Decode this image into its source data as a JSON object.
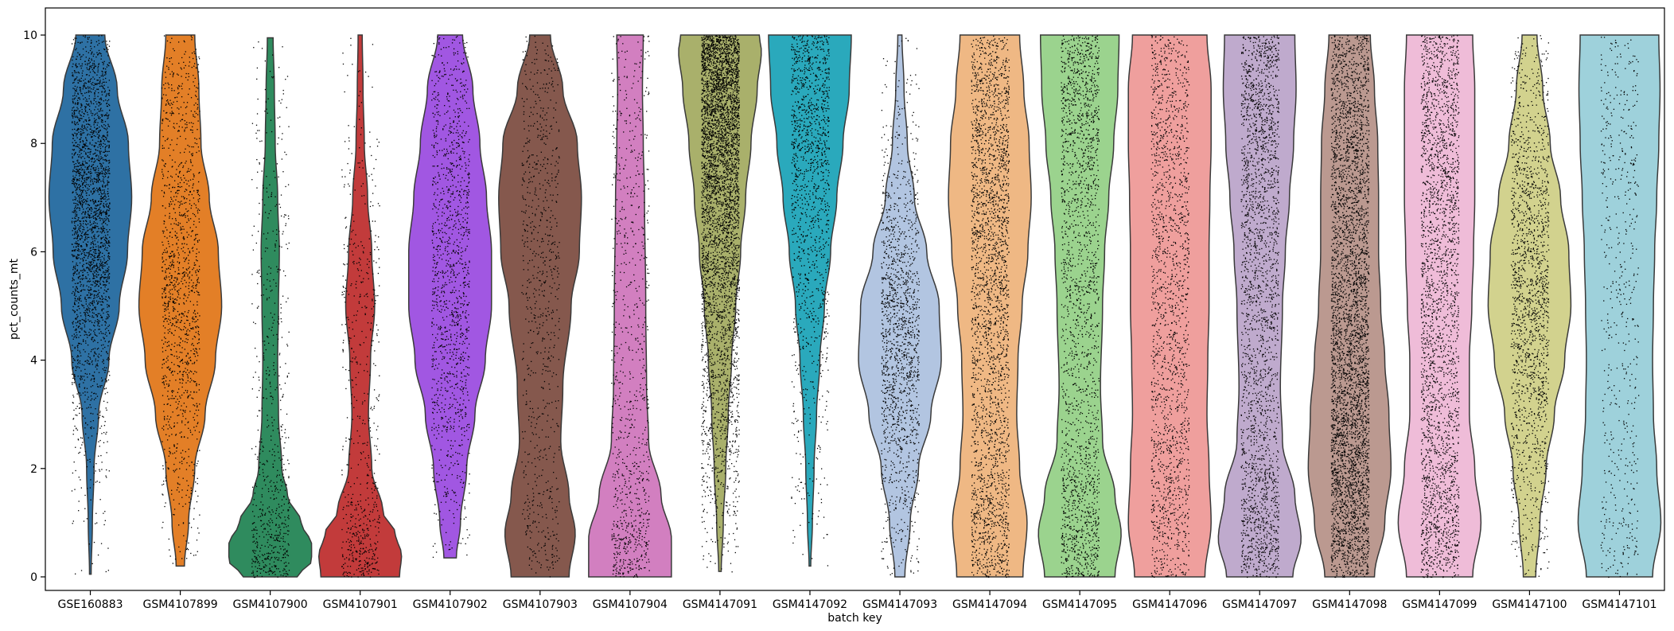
{
  "chart_data": {
    "type": "violin",
    "xlabel": "batch key",
    "ylabel": "pct_counts_mt",
    "ylim": [
      -0.25,
      10.5
    ],
    "yticks": [
      0,
      2,
      4,
      6,
      8,
      10
    ],
    "grid": false,
    "legend": "none",
    "jitter_points": true,
    "categories": [
      "GSE160883",
      "GSM4107899",
      "GSM4107900",
      "GSM4107901",
      "GSM4107902",
      "GSM4107903",
      "GSM4107904",
      "GSM4147091",
      "GSM4147092",
      "GSM4147093",
      "GSM4147094",
      "GSM4147095",
      "GSM4147096",
      "GSM4147097",
      "GSM4147098",
      "GSM4147099",
      "GSM4147100",
      "GSM4147101"
    ],
    "colors": [
      "#2e71a4",
      "#e37f27",
      "#2f8b5e",
      "#c23b3b",
      "#a157e2",
      "#85584d",
      "#d27fc0",
      "#a9b06b",
      "#2aa9bc",
      "#b2c5e1",
      "#efb884",
      "#9bd38e",
      "#ef9f9d",
      "#bfaacd",
      "#bb9990",
      "#efbcd8",
      "#d2d28e",
      "#9ed1db"
    ],
    "violins": [
      {
        "min": 0.05,
        "max": 10.0,
        "count": 2600,
        "profile": [
          [
            0.05,
            0.02
          ],
          [
            1,
            0.05
          ],
          [
            2,
            0.09
          ],
          [
            3,
            0.2
          ],
          [
            4,
            0.45
          ],
          [
            5,
            0.7
          ],
          [
            6,
            0.9
          ],
          [
            7,
            1.0
          ],
          [
            8,
            0.92
          ],
          [
            9,
            0.65
          ],
          [
            10,
            0.35
          ]
        ]
      },
      {
        "min": 0.2,
        "max": 10.0,
        "count": 1300,
        "profile": [
          [
            0.2,
            0.1
          ],
          [
            1,
            0.2
          ],
          [
            2,
            0.35
          ],
          [
            3,
            0.6
          ],
          [
            4,
            0.85
          ],
          [
            5,
            1.0
          ],
          [
            6,
            0.92
          ],
          [
            7,
            0.7
          ],
          [
            8,
            0.5
          ],
          [
            9,
            0.45
          ],
          [
            10,
            0.35
          ]
        ]
      },
      {
        "min": 0.0,
        "max": 9.95,
        "count": 700,
        "profile": [
          [
            0,
            0.65
          ],
          [
            0.3,
            1.0
          ],
          [
            0.6,
            1.0
          ],
          [
            1,
            0.75
          ],
          [
            1.5,
            0.42
          ],
          [
            2,
            0.28
          ],
          [
            3,
            0.2
          ],
          [
            4,
            0.18
          ],
          [
            5,
            0.2
          ],
          [
            6,
            0.22
          ],
          [
            7,
            0.18
          ],
          [
            8,
            0.12
          ],
          [
            9,
            0.1
          ],
          [
            9.95,
            0.07
          ]
        ]
      },
      {
        "min": 0.0,
        "max": 10.0,
        "count": 650,
        "profile": [
          [
            0,
            0.95
          ],
          [
            0.4,
            1.0
          ],
          [
            0.8,
            0.85
          ],
          [
            1.2,
            0.55
          ],
          [
            2,
            0.28
          ],
          [
            3,
            0.2
          ],
          [
            4,
            0.25
          ],
          [
            5,
            0.35
          ],
          [
            6,
            0.28
          ],
          [
            7,
            0.18
          ],
          [
            8,
            0.1
          ],
          [
            9,
            0.07
          ],
          [
            10,
            0.05
          ]
        ]
      },
      {
        "min": 0.35,
        "max": 10.0,
        "count": 1300,
        "profile": [
          [
            0.35,
            0.15
          ],
          [
            1,
            0.25
          ],
          [
            2,
            0.4
          ],
          [
            3,
            0.6
          ],
          [
            4,
            0.85
          ],
          [
            5,
            1.0
          ],
          [
            6,
            1.0
          ],
          [
            7,
            0.88
          ],
          [
            8,
            0.72
          ],
          [
            9,
            0.55
          ],
          [
            10,
            0.3
          ]
        ]
      },
      {
        "min": 0.0,
        "max": 10.0,
        "count": 800,
        "profile": [
          [
            0,
            0.7
          ],
          [
            0.8,
            0.85
          ],
          [
            1.5,
            0.7
          ],
          [
            2.5,
            0.5
          ],
          [
            3.5,
            0.55
          ],
          [
            5,
            0.75
          ],
          [
            6,
            0.95
          ],
          [
            7,
            1.0
          ],
          [
            8,
            0.9
          ],
          [
            9,
            0.55
          ],
          [
            10,
            0.25
          ]
        ]
      },
      {
        "min": 0.0,
        "max": 10.0,
        "count": 900,
        "profile": [
          [
            0,
            1.0
          ],
          [
            0.7,
            1.0
          ],
          [
            1.5,
            0.75
          ],
          [
            2.5,
            0.45
          ],
          [
            3.5,
            0.4
          ],
          [
            5,
            0.38
          ],
          [
            7,
            0.35
          ],
          [
            8,
            0.32
          ],
          [
            9,
            0.3
          ],
          [
            10,
            0.32
          ]
        ]
      },
      {
        "min": 0.1,
        "max": 10.0,
        "count": 4500,
        "profile": [
          [
            0.1,
            0.03
          ],
          [
            1,
            0.08
          ],
          [
            2,
            0.14
          ],
          [
            3,
            0.2
          ],
          [
            4,
            0.28
          ],
          [
            5,
            0.38
          ],
          [
            6,
            0.5
          ],
          [
            7,
            0.62
          ],
          [
            8,
            0.75
          ],
          [
            9,
            0.9
          ],
          [
            9.7,
            1.0
          ],
          [
            10,
            0.95
          ]
        ]
      },
      {
        "min": 0.2,
        "max": 10.0,
        "count": 1300,
        "profile": [
          [
            0.2,
            0.02
          ],
          [
            1,
            0.06
          ],
          [
            2,
            0.1
          ],
          [
            3,
            0.16
          ],
          [
            4,
            0.24
          ],
          [
            5,
            0.35
          ],
          [
            6,
            0.5
          ],
          [
            7,
            0.65
          ],
          [
            8,
            0.8
          ],
          [
            9,
            0.95
          ],
          [
            10,
            1.0
          ]
        ]
      },
      {
        "min": 0.0,
        "max": 10.0,
        "count": 1500,
        "profile": [
          [
            0,
            0.12
          ],
          [
            1,
            0.25
          ],
          [
            2,
            0.45
          ],
          [
            3,
            0.75
          ],
          [
            4,
            1.0
          ],
          [
            5,
            0.95
          ],
          [
            6,
            0.65
          ],
          [
            7,
            0.35
          ],
          [
            8,
            0.18
          ],
          [
            9,
            0.1
          ],
          [
            10,
            0.05
          ]
        ]
      },
      {
        "min": 0.0,
        "max": 10.0,
        "count": 2600,
        "profile": [
          [
            0,
            0.8
          ],
          [
            1,
            0.9
          ],
          [
            2,
            0.72
          ],
          [
            3,
            0.65
          ],
          [
            4,
            0.68
          ],
          [
            5,
            0.78
          ],
          [
            6,
            0.92
          ],
          [
            7,
            1.0
          ],
          [
            8,
            0.95
          ],
          [
            9,
            0.82
          ],
          [
            10,
            0.72
          ]
        ]
      },
      {
        "min": 0.0,
        "max": 10.0,
        "count": 2000,
        "profile": [
          [
            0,
            0.85
          ],
          [
            0.8,
            1.0
          ],
          [
            1.5,
            0.85
          ],
          [
            2.5,
            0.55
          ],
          [
            3.5,
            0.5
          ],
          [
            5,
            0.55
          ],
          [
            6,
            0.6
          ],
          [
            7,
            0.7
          ],
          [
            8,
            0.82
          ],
          [
            9,
            0.92
          ],
          [
            10,
            0.95
          ]
        ]
      },
      {
        "min": 0.0,
        "max": 10.0,
        "count": 1700,
        "profile": [
          [
            0,
            0.85
          ],
          [
            1,
            1.0
          ],
          [
            2,
            0.95
          ],
          [
            3,
            0.9
          ],
          [
            4,
            0.92
          ],
          [
            5,
            0.95
          ],
          [
            6,
            0.95
          ],
          [
            7,
            0.97
          ],
          [
            8,
            1.0
          ],
          [
            9,
            1.0
          ],
          [
            10,
            0.9
          ]
        ]
      },
      {
        "min": 0.0,
        "max": 10.0,
        "count": 2400,
        "profile": [
          [
            0,
            0.8
          ],
          [
            0.7,
            1.0
          ],
          [
            1.5,
            0.85
          ],
          [
            2.5,
            0.55
          ],
          [
            3.5,
            0.5
          ],
          [
            5,
            0.55
          ],
          [
            6,
            0.62
          ],
          [
            7,
            0.72
          ],
          [
            8,
            0.82
          ],
          [
            9,
            0.88
          ],
          [
            10,
            0.85
          ]
        ]
      },
      {
        "min": 0.0,
        "max": 10.0,
        "count": 4200,
        "profile": [
          [
            0,
            0.6
          ],
          [
            1,
            0.85
          ],
          [
            2,
            1.0
          ],
          [
            3,
            0.95
          ],
          [
            4,
            0.85
          ],
          [
            5,
            0.75
          ],
          [
            6,
            0.7
          ],
          [
            7,
            0.7
          ],
          [
            8,
            0.68
          ],
          [
            9,
            0.6
          ],
          [
            10,
            0.5
          ]
        ]
      },
      {
        "min": 0.0,
        "max": 10.0,
        "count": 2600,
        "profile": [
          [
            0,
            0.8
          ],
          [
            1,
            1.0
          ],
          [
            2,
            0.85
          ],
          [
            3,
            0.72
          ],
          [
            4,
            0.72
          ],
          [
            5,
            0.78
          ],
          [
            6,
            0.82
          ],
          [
            7,
            0.85
          ],
          [
            8,
            0.85
          ],
          [
            9,
            0.85
          ],
          [
            10,
            0.8
          ]
        ]
      },
      {
        "min": 0.0,
        "max": 10.0,
        "count": 1700,
        "profile": [
          [
            0,
            0.15
          ],
          [
            1,
            0.25
          ],
          [
            2,
            0.4
          ],
          [
            3,
            0.6
          ],
          [
            4,
            0.85
          ],
          [
            5,
            1.0
          ],
          [
            6,
            0.95
          ],
          [
            7,
            0.75
          ],
          [
            8,
            0.5
          ],
          [
            9,
            0.32
          ],
          [
            10,
            0.18
          ]
        ]
      },
      {
        "min": 0.0,
        "max": 10.0,
        "count": 550,
        "profile": [
          [
            0,
            0.8
          ],
          [
            1,
            1.0
          ],
          [
            2,
            0.9
          ],
          [
            3,
            0.82
          ],
          [
            4,
            0.8
          ],
          [
            5,
            0.82
          ],
          [
            6,
            0.85
          ],
          [
            7,
            0.9
          ],
          [
            8,
            0.95
          ],
          [
            9,
            0.98
          ],
          [
            10,
            0.95
          ]
        ]
      }
    ]
  }
}
